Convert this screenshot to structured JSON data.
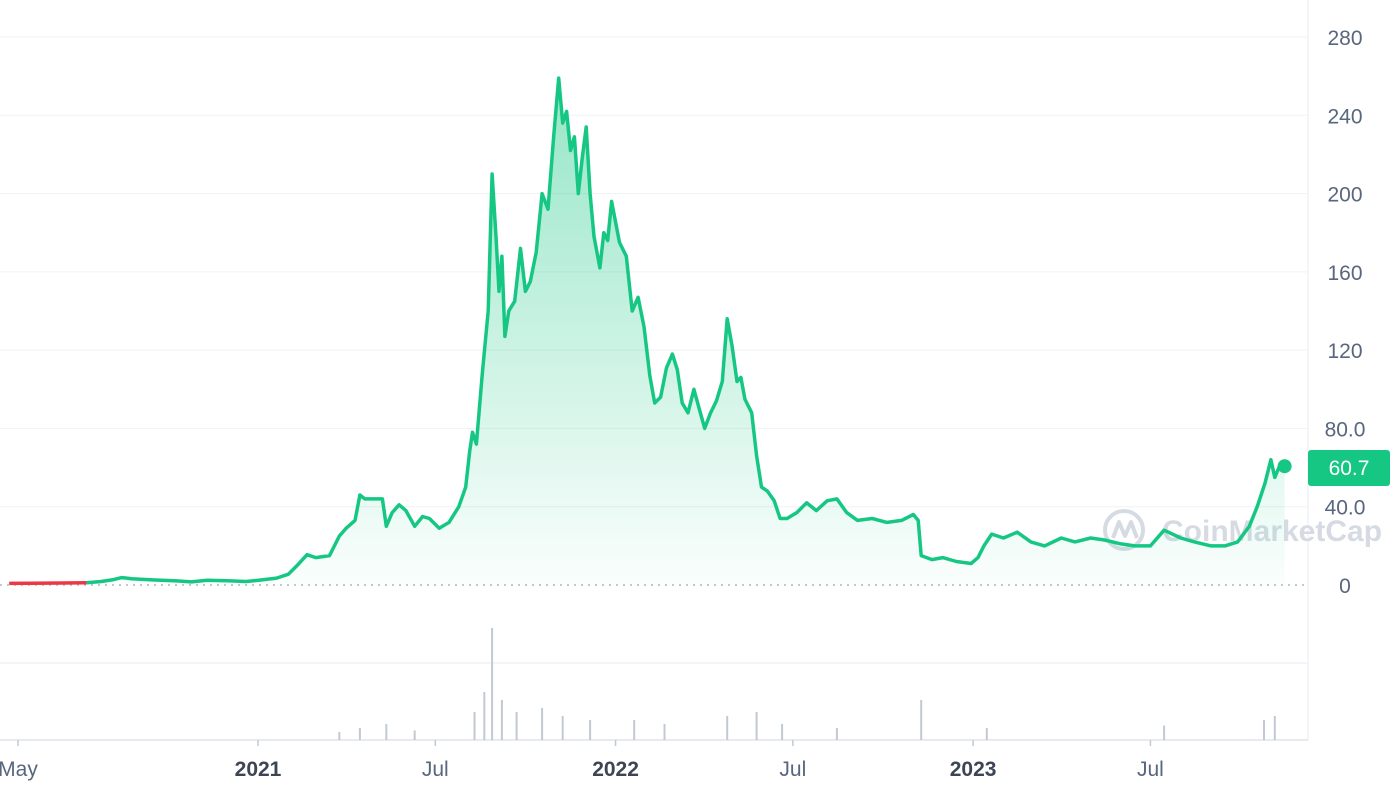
{
  "chart_data": {
    "type": "line",
    "title": "",
    "xlabel": "",
    "ylabel": "",
    "ylim": [
      0,
      280
    ],
    "y_ticks": [
      0,
      40.0,
      80.0,
      120,
      160,
      200,
      240,
      280
    ],
    "y_tick_labels": [
      "0",
      "40.0",
      "80.0",
      "120",
      "160",
      "200",
      "240",
      "280"
    ],
    "x_tick_labels": [
      {
        "label": "May",
        "date": "2020-05-01",
        "bold": false
      },
      {
        "label": "2021",
        "date": "2021-01-01",
        "bold": true
      },
      {
        "label": "Jul",
        "date": "2021-07-01",
        "bold": false
      },
      {
        "label": "2022",
        "date": "2022-01-01",
        "bold": true
      },
      {
        "label": "Jul",
        "date": "2022-07-01",
        "bold": false
      },
      {
        "label": "2023",
        "date": "2023-01-01",
        "bold": true
      },
      {
        "label": "Jul",
        "date": "2023-07-01",
        "bold": false
      }
    ],
    "grid": true,
    "current_price_label": "60.7",
    "colors": {
      "up_line": "#16c784",
      "down_line": "#ea3943",
      "price_badge": "#16c784",
      "volume_bars": "#c3c9d3",
      "grid": "#eff2f5"
    },
    "series": [
      {
        "values": [
          [
            "2020-04-22",
            0.8
          ],
          [
            "2020-05-15",
            0.9
          ],
          [
            "2020-06-15",
            1.0
          ],
          [
            "2020-07-10",
            1.2
          ],
          [
            "2020-07-25",
            1.8
          ],
          [
            "2020-08-05",
            2.6
          ],
          [
            "2020-08-15",
            3.8
          ],
          [
            "2020-08-25",
            3.2
          ],
          [
            "2020-09-15",
            2.6
          ],
          [
            "2020-10-10",
            2.1
          ],
          [
            "2020-10-25",
            1.6
          ],
          [
            "2020-11-10",
            2.4
          ],
          [
            "2020-12-01",
            2.2
          ],
          [
            "2020-12-20",
            1.8
          ],
          [
            "2021-01-05",
            2.6
          ],
          [
            "2021-01-20",
            3.5
          ],
          [
            "2021-02-01",
            5.5
          ],
          [
            "2021-02-10",
            10.0
          ],
          [
            "2021-02-20",
            15.5
          ],
          [
            "2021-03-01",
            14.0
          ],
          [
            "2021-03-15",
            15.0
          ],
          [
            "2021-03-25",
            25.0
          ],
          [
            "2021-04-01",
            29.0
          ],
          [
            "2021-04-10",
            33.0
          ],
          [
            "2021-04-15",
            46.0
          ],
          [
            "2021-04-20",
            44.0
          ],
          [
            "2021-04-30",
            44.0
          ],
          [
            "2021-05-08",
            44.0
          ],
          [
            "2021-05-12",
            30.0
          ],
          [
            "2021-05-18",
            37.0
          ],
          [
            "2021-05-25",
            41.0
          ],
          [
            "2021-06-01",
            38.0
          ],
          [
            "2021-06-10",
            30.0
          ],
          [
            "2021-06-18",
            35.0
          ],
          [
            "2021-06-25",
            34.0
          ],
          [
            "2021-07-05",
            29.0
          ],
          [
            "2021-07-15",
            32.0
          ],
          [
            "2021-07-25",
            40.0
          ],
          [
            "2021-08-01",
            50.0
          ],
          [
            "2021-08-05",
            68.0
          ],
          [
            "2021-08-08",
            78.0
          ],
          [
            "2021-08-12",
            72.0
          ],
          [
            "2021-08-18",
            108.0
          ],
          [
            "2021-08-24",
            140.0
          ],
          [
            "2021-08-28",
            210.0
          ],
          [
            "2021-09-01",
            178.0
          ],
          [
            "2021-09-04",
            150.0
          ],
          [
            "2021-09-07",
            168.0
          ],
          [
            "2021-09-10",
            127.0
          ],
          [
            "2021-09-14",
            140.0
          ],
          [
            "2021-09-20",
            145.0
          ],
          [
            "2021-09-26",
            172.0
          ],
          [
            "2021-10-01",
            150.0
          ],
          [
            "2021-10-06",
            155.0
          ],
          [
            "2021-10-12",
            170.0
          ],
          [
            "2021-10-18",
            200.0
          ],
          [
            "2021-10-24",
            192.0
          ],
          [
            "2021-10-30",
            230.0
          ],
          [
            "2021-11-04",
            259.0
          ],
          [
            "2021-11-08",
            236.0
          ],
          [
            "2021-11-12",
            242.0
          ],
          [
            "2021-11-16",
            222.0
          ],
          [
            "2021-11-20",
            229.0
          ],
          [
            "2021-11-24",
            200.0
          ],
          [
            "2021-11-28",
            218.0
          ],
          [
            "2021-12-02",
            234.0
          ],
          [
            "2021-12-06",
            200.0
          ],
          [
            "2021-12-10",
            178.0
          ],
          [
            "2021-12-16",
            162.0
          ],
          [
            "2021-12-20",
            180.0
          ],
          [
            "2021-12-24",
            176.0
          ],
          [
            "2021-12-28",
            196.0
          ],
          [
            "2022-01-05",
            175.0
          ],
          [
            "2022-01-12",
            168.0
          ],
          [
            "2022-01-18",
            140.0
          ],
          [
            "2022-01-24",
            147.0
          ],
          [
            "2022-01-30",
            132.0
          ],
          [
            "2022-02-05",
            107.0
          ],
          [
            "2022-02-10",
            93.0
          ],
          [
            "2022-02-16",
            96.0
          ],
          [
            "2022-02-22",
            111.0
          ],
          [
            "2022-02-28",
            118.0
          ],
          [
            "2022-03-05",
            110.0
          ],
          [
            "2022-03-10",
            93.0
          ],
          [
            "2022-03-16",
            88.0
          ],
          [
            "2022-03-22",
            100.0
          ],
          [
            "2022-03-28",
            89.0
          ],
          [
            "2022-04-02",
            80.0
          ],
          [
            "2022-04-08",
            88.0
          ],
          [
            "2022-04-14",
            94.0
          ],
          [
            "2022-04-20",
            104.0
          ],
          [
            "2022-04-25",
            136.0
          ],
          [
            "2022-04-30",
            122.0
          ],
          [
            "2022-05-05",
            104.0
          ],
          [
            "2022-05-09",
            106.0
          ],
          [
            "2022-05-13",
            95.0
          ],
          [
            "2022-05-20",
            88.0
          ],
          [
            "2022-05-25",
            66.0
          ],
          [
            "2022-05-30",
            50.0
          ],
          [
            "2022-06-05",
            48.0
          ],
          [
            "2022-06-12",
            43.0
          ],
          [
            "2022-06-18",
            34.0
          ],
          [
            "2022-06-25",
            34.0
          ],
          [
            "2022-07-05",
            37.0
          ],
          [
            "2022-07-15",
            42.0
          ],
          [
            "2022-07-25",
            38.0
          ],
          [
            "2022-08-05",
            43.0
          ],
          [
            "2022-08-15",
            44.0
          ],
          [
            "2022-08-25",
            37.0
          ],
          [
            "2022-09-05",
            33.0
          ],
          [
            "2022-09-20",
            34.0
          ],
          [
            "2022-10-05",
            32.0
          ],
          [
            "2022-10-20",
            33.0
          ],
          [
            "2022-11-01",
            36.0
          ],
          [
            "2022-11-06",
            33.0
          ],
          [
            "2022-11-09",
            15.0
          ],
          [
            "2022-11-20",
            13.0
          ],
          [
            "2022-12-01",
            14.0
          ],
          [
            "2022-12-15",
            12.0
          ],
          [
            "2022-12-30",
            11.0
          ],
          [
            "2023-01-06",
            14.0
          ],
          [
            "2023-01-12",
            20.0
          ],
          [
            "2023-01-20",
            26.0
          ],
          [
            "2023-02-01",
            24.0
          ],
          [
            "2023-02-15",
            27.0
          ],
          [
            "2023-03-01",
            22.0
          ],
          [
            "2023-03-15",
            20.0
          ],
          [
            "2023-04-01",
            24.0
          ],
          [
            "2023-04-15",
            22.0
          ],
          [
            "2023-05-01",
            24.0
          ],
          [
            "2023-05-15",
            23.0
          ],
          [
            "2023-06-01",
            21.0
          ],
          [
            "2023-06-15",
            20.0
          ],
          [
            "2023-07-01",
            20.0
          ],
          [
            "2023-07-15",
            28.0
          ],
          [
            "2023-08-01",
            24.0
          ],
          [
            "2023-08-15",
            22.0
          ],
          [
            "2023-09-01",
            20.0
          ],
          [
            "2023-09-15",
            20.0
          ],
          [
            "2023-09-28",
            22.0
          ],
          [
            "2023-10-10",
            30.0
          ],
          [
            "2023-10-18",
            40.0
          ],
          [
            "2023-10-26",
            52.0
          ],
          [
            "2023-11-01",
            64.0
          ],
          [
            "2023-11-05",
            55.0
          ],
          [
            "2023-11-10",
            61.0
          ],
          [
            "2023-11-15",
            60.7
          ]
        ]
      }
    ],
    "volume": {
      "unit": "relative",
      "values": [
        [
          "2021-03-25",
          1.0
        ],
        [
          "2021-04-15",
          1.5
        ],
        [
          "2021-05-12",
          2.0
        ],
        [
          "2021-06-10",
          1.2
        ],
        [
          "2021-08-10",
          3.5
        ],
        [
          "2021-08-20",
          6.0
        ],
        [
          "2021-08-28",
          14.0
        ],
        [
          "2021-09-07",
          5.0
        ],
        [
          "2021-09-22",
          3.5
        ],
        [
          "2021-10-18",
          4.0
        ],
        [
          "2021-11-08",
          3.0
        ],
        [
          "2021-12-06",
          2.5
        ],
        [
          "2022-01-20",
          2.5
        ],
        [
          "2022-02-20",
          2.0
        ],
        [
          "2022-04-25",
          3.0
        ],
        [
          "2022-05-25",
          3.5
        ],
        [
          "2022-06-20",
          2.0
        ],
        [
          "2022-08-15",
          1.5
        ],
        [
          "2022-11-09",
          5.0
        ],
        [
          "2023-01-15",
          1.5
        ],
        [
          "2023-07-15",
          1.8
        ],
        [
          "2023-10-25",
          2.5
        ],
        [
          "2023-11-05",
          3.0
        ]
      ]
    }
  },
  "watermark": {
    "text": "CoinMarketCap",
    "icon": "coinmarketcap-logo-icon"
  }
}
